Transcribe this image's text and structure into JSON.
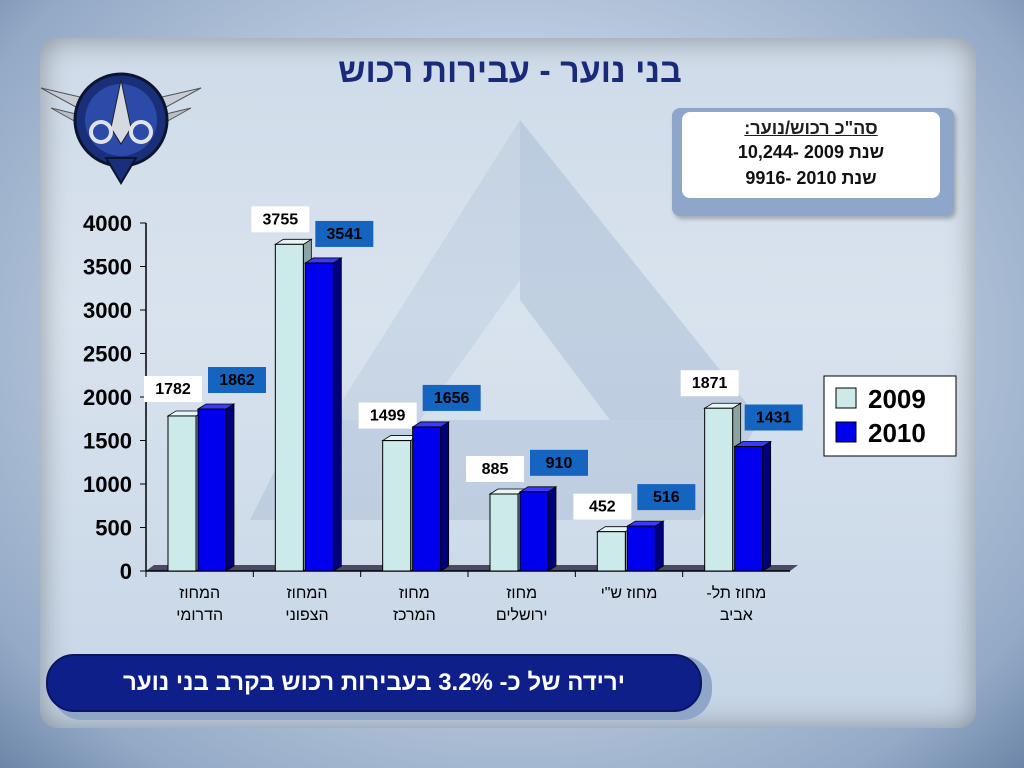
{
  "title": "בני נוער - עבירות רכוש",
  "totals_box": {
    "title": "סה\"כ רכוש/נוער:",
    "line_2009": "שנת 2009 -10,244",
    "line_2010": "שנת 2010 -9916"
  },
  "footer_text": "ירידה  של כ- 3.2% בעבירות רכוש בקרב בני נוער",
  "colors": {
    "series_2009": "#cdeaea",
    "series_2010": "#0000ee",
    "title": "#1a2a7a",
    "footer": "#0f1f8a"
  },
  "chart_data": {
    "type": "bar",
    "categories": [
      [
        "המחוז",
        "הדרומי"
      ],
      [
        "המחוז",
        "הצפוני"
      ],
      [
        "מחוז",
        "המרכז"
      ],
      [
        "מחוז",
        "ירושלים"
      ],
      [
        "מחוז ש\"י"
      ],
      [
        "מחוז תל-",
        "אביב"
      ]
    ],
    "series": [
      {
        "name": "2009",
        "values": [
          1782,
          3755,
          1499,
          885,
          452,
          1871
        ]
      },
      {
        "name": "2010",
        "values": [
          1862,
          3541,
          1656,
          910,
          516,
          1431
        ]
      }
    ],
    "ylim": [
      0,
      4000
    ],
    "yticks": [
      0,
      500,
      1000,
      1500,
      2000,
      2500,
      3000,
      3500,
      4000
    ],
    "legend_position": "right",
    "grid": false,
    "data_labels": true
  }
}
